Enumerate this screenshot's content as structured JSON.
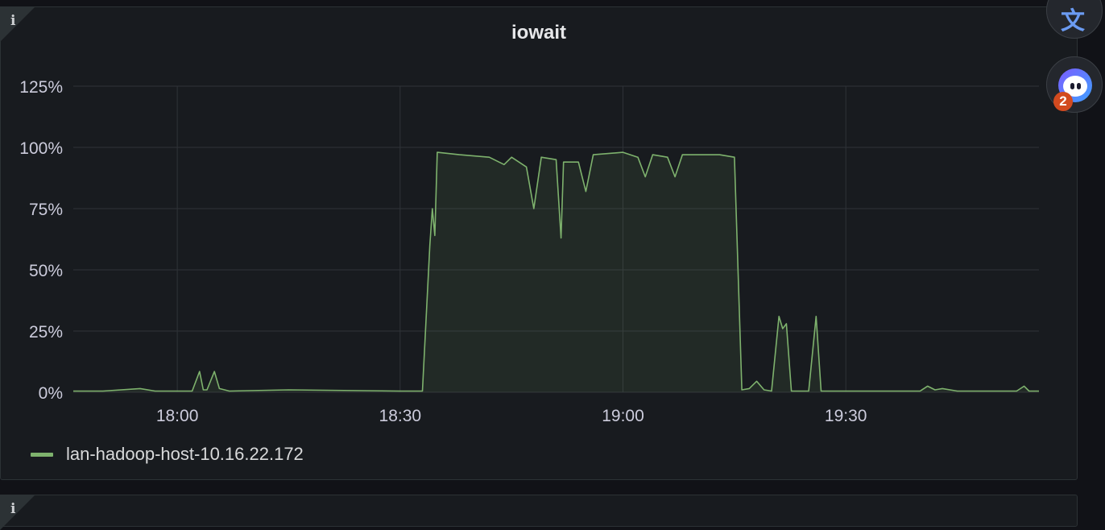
{
  "panel": {
    "title": "iowait",
    "info_icon": "info-icon"
  },
  "floating": {
    "translate_icon": "translate-icon",
    "assistant_icon": "assistant-icon",
    "assistant_badge": "2"
  },
  "chart_data": {
    "type": "area",
    "title": "iowait",
    "xlabel": "",
    "ylabel": "",
    "x_range": [
      "17:46",
      "19:56"
    ],
    "x_ticks": [
      "18:00",
      "18:30",
      "19:00",
      "19:30"
    ],
    "ylim": [
      0,
      125
    ],
    "y_ticks": [
      "0%",
      "25%",
      "50%",
      "75%",
      "100%",
      "125%"
    ],
    "grid": true,
    "legend_position": "bottom-left",
    "series": [
      {
        "name": "lan-hadoop-host-10.16.22.172",
        "color": "#7eb26d",
        "points": [
          [
            "17:46",
            0.5
          ],
          [
            "17:50",
            0.5
          ],
          [
            "17:55",
            1.5
          ],
          [
            "17:57",
            0.5
          ],
          [
            "18:02",
            0.5
          ],
          [
            "18:03",
            8.5
          ],
          [
            "18:03:30",
            1
          ],
          [
            "18:04",
            1
          ],
          [
            "18:05",
            8.5
          ],
          [
            "18:05:40",
            1.5
          ],
          [
            "18:07",
            0.5
          ],
          [
            "18:15",
            1
          ],
          [
            "18:30",
            0.5
          ],
          [
            "18:33",
            0.5
          ],
          [
            "18:34",
            60
          ],
          [
            "18:34:20",
            75
          ],
          [
            "18:34:40",
            64
          ],
          [
            "18:35",
            98
          ],
          [
            "18:38",
            97
          ],
          [
            "18:42",
            96
          ],
          [
            "18:44",
            93
          ],
          [
            "18:45",
            96
          ],
          [
            "18:47",
            92
          ],
          [
            "18:48",
            75
          ],
          [
            "18:49",
            96
          ],
          [
            "18:51",
            95
          ],
          [
            "18:51:40",
            63
          ],
          [
            "18:52",
            94
          ],
          [
            "18:54",
            94
          ],
          [
            "18:55",
            82
          ],
          [
            "18:56",
            97
          ],
          [
            "19:00",
            98
          ],
          [
            "19:02",
            96
          ],
          [
            "19:03",
            88
          ],
          [
            "19:04",
            97
          ],
          [
            "19:06",
            96
          ],
          [
            "19:07",
            88
          ],
          [
            "19:08",
            97
          ],
          [
            "19:11",
            97
          ],
          [
            "19:13",
            97
          ],
          [
            "19:15",
            96
          ],
          [
            "19:16",
            1
          ],
          [
            "19:17",
            1.5
          ],
          [
            "19:18",
            4.5
          ],
          [
            "19:19",
            1
          ],
          [
            "19:20",
            0.5
          ],
          [
            "19:21",
            31
          ],
          [
            "19:21:30",
            26
          ],
          [
            "19:22",
            28
          ],
          [
            "19:22:40",
            0.5
          ],
          [
            "19:25",
            0.5
          ],
          [
            "19:26",
            31
          ],
          [
            "19:26:40",
            0.5
          ],
          [
            "19:30",
            0.5
          ],
          [
            "19:40",
            0.5
          ],
          [
            "19:41",
            2.5
          ],
          [
            "19:42",
            1
          ],
          [
            "19:43",
            1.5
          ],
          [
            "19:45",
            0.5
          ],
          [
            "19:53",
            0.5
          ],
          [
            "19:54",
            2.5
          ],
          [
            "19:54:40",
            0.5
          ],
          [
            "19:56",
            0.5
          ]
        ]
      }
    ]
  }
}
